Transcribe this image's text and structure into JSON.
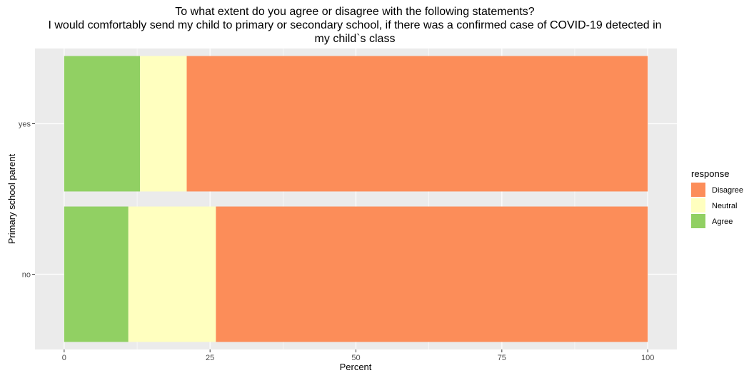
{
  "chart_data": {
    "type": "bar",
    "orientation": "horizontal",
    "stacked": true,
    "title_lines": [
      "To what extent do you agree or disagree with the following statements?",
      "I would comfortably send my child to primary or secondary  school, if there was a confirmed case of COVID-19 detected in",
      "my child`s class"
    ],
    "xlabel": "Percent",
    "ylabel": "Primary school parent",
    "xlim": [
      -5,
      105
    ],
    "xticks": [
      0,
      25,
      50,
      75,
      100
    ],
    "xtick_labels": [
      "0",
      "25",
      "50",
      "75",
      "100"
    ],
    "categories": [
      "yes",
      "no"
    ],
    "series": [
      {
        "name": "Agree",
        "color": "#91d063",
        "values": [
          13,
          11
        ]
      },
      {
        "name": "Neutral",
        "color": "#ffffbf",
        "values": [
          8,
          15
        ]
      },
      {
        "name": "Disagree",
        "color": "#fc8d59",
        "values": [
          79,
          74
        ]
      }
    ],
    "legend": {
      "title": "response",
      "placement": "right",
      "order": [
        "Disagree",
        "Neutral",
        "Agree"
      ]
    },
    "grid": true,
    "panel_color": "#ebebeb"
  }
}
